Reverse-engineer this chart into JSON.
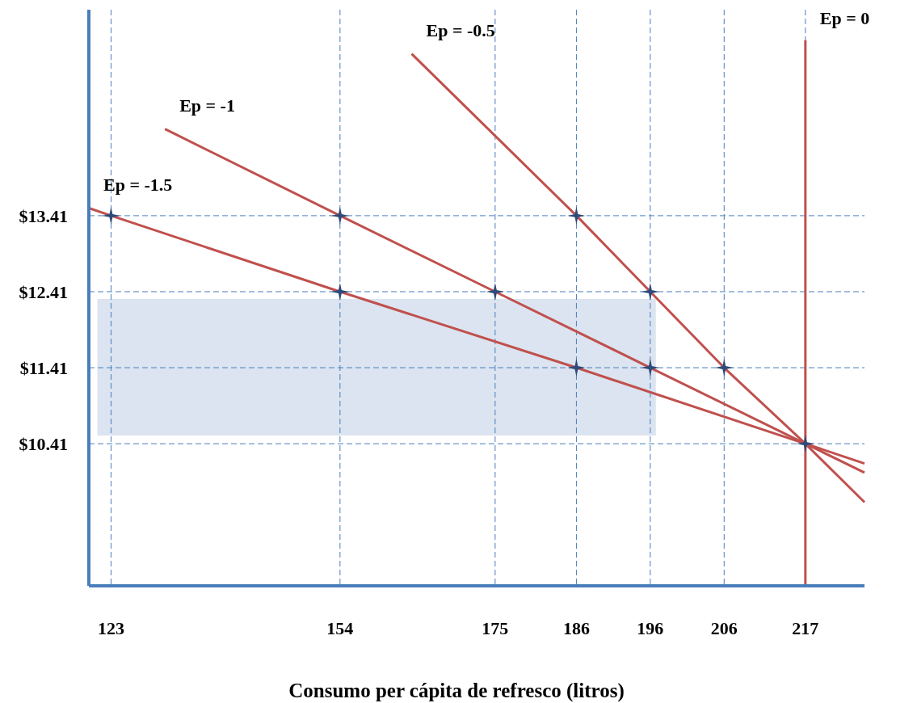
{
  "chart_data": {
    "type": "line",
    "xlabel": "Consumo per cápita de refresco (litros)",
    "xlim": [
      120,
      225
    ],
    "ylim": [
      8.54,
      16.12
    ],
    "xticks": [
      123,
      154,
      175,
      186,
      196,
      206,
      217
    ],
    "yticks": [
      {
        "value": 10.41,
        "label": "$10.41"
      },
      {
        "value": 11.41,
        "label": "$11.41"
      },
      {
        "value": 12.41,
        "label": "$12.41"
      },
      {
        "value": 13.41,
        "label": "$13.41"
      }
    ],
    "grid": true,
    "line_style": "solid",
    "marker": "none",
    "series": [
      {
        "name": "Ep = -1.5",
        "color": "#c0504d",
        "x": [
          120,
          123,
          154,
          186,
          217,
          225
        ],
        "values": [
          13.51,
          13.41,
          12.41,
          11.41,
          10.41,
          10.15
        ]
      },
      {
        "name": "Ep = -1",
        "color": "#c0504d",
        "x": [
          130.3,
          154,
          175,
          196,
          217,
          225
        ],
        "values": [
          14.55,
          13.41,
          12.41,
          11.41,
          10.41,
          10.03
        ]
      },
      {
        "name": "Ep = -0.5",
        "color": "#c0504d",
        "x": [
          163.7,
          186,
          196,
          206,
          217,
          225
        ],
        "values": [
          15.54,
          13.41,
          12.41,
          11.41,
          10.41,
          9.64
        ]
      },
      {
        "name": "Ep = 0",
        "color": "#c0504d",
        "x": [
          217,
          217
        ],
        "values": [
          15.72,
          8.54
        ]
      },
      {
        "type": "scatter",
        "marker": "star",
        "color": "#2c4a7a",
        "x": [
          123,
          154,
          186,
          154,
          175,
          196,
          186,
          196,
          206,
          217
        ],
        "values": [
          13.41,
          13.41,
          13.41,
          12.41,
          12.41,
          12.41,
          11.41,
          11.41,
          11.41,
          10.41
        ]
      }
    ]
  }
}
